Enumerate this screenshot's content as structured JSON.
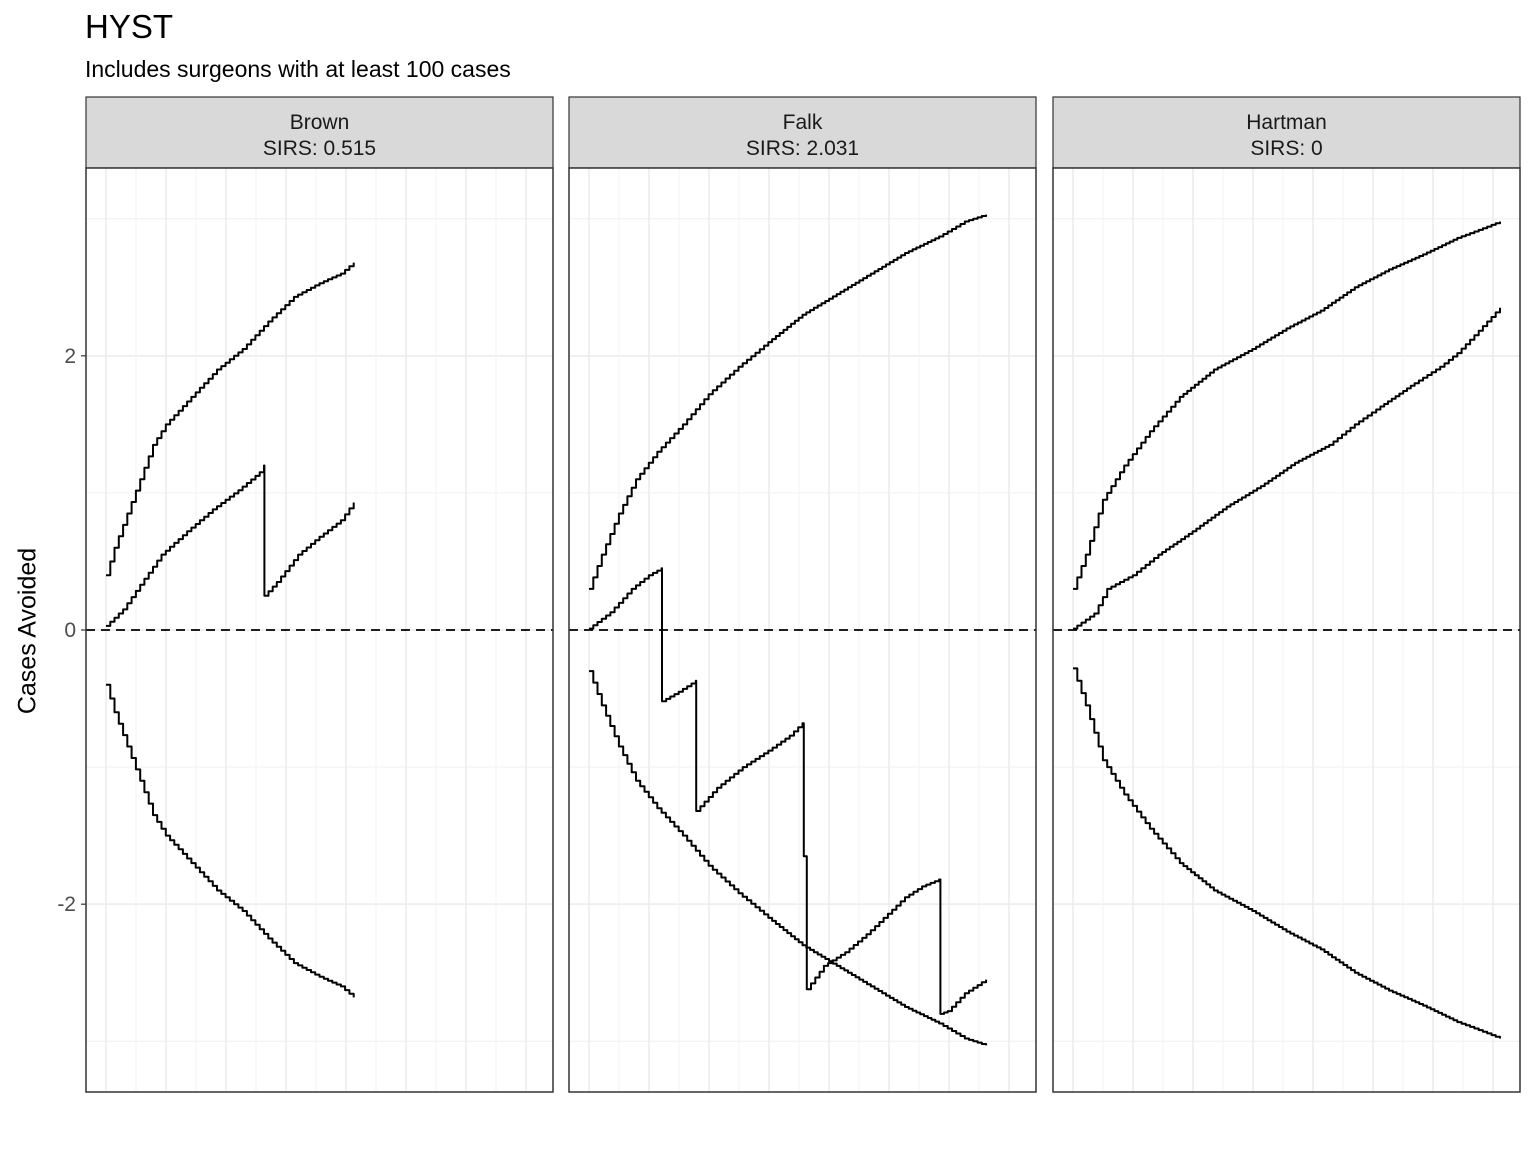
{
  "chart_data": {
    "type": "line",
    "title": "HYST",
    "subtitle": "Includes surgeons with at least 100 cases",
    "ylabel": "Cases Avoided",
    "xlabel": "",
    "ylim": [
      -3.37,
      3.37
    ],
    "y_ticks": [
      -2,
      0,
      2
    ],
    "y_tick_labels": [
      "-2",
      "0",
      "2"
    ],
    "x_range": [
      0,
      100
    ],
    "x_ticks_visible": false,
    "grid": true,
    "reference_line": {
      "y": 0,
      "style": "dashed"
    },
    "panels": [
      {
        "name": "Brown",
        "stat_label": "SIRS:  0.515",
        "upper": [
          [
            0,
            0.4
          ],
          [
            2,
            0.6
          ],
          [
            5,
            0.85
          ],
          [
            8,
            1.1
          ],
          [
            11,
            1.35
          ],
          [
            14,
            1.5
          ],
          [
            20,
            1.7
          ],
          [
            26,
            1.9
          ],
          [
            32,
            2.05
          ],
          [
            38,
            2.25
          ],
          [
            44,
            2.43
          ],
          [
            50,
            2.53
          ],
          [
            55,
            2.6
          ],
          [
            58,
            2.68
          ]
        ],
        "lower": [
          [
            0,
            -0.4
          ],
          [
            2,
            -0.6
          ],
          [
            5,
            -0.85
          ],
          [
            8,
            -1.1
          ],
          [
            11,
            -1.35
          ],
          [
            14,
            -1.5
          ],
          [
            20,
            -1.7
          ],
          [
            26,
            -1.9
          ],
          [
            32,
            -2.05
          ],
          [
            38,
            -2.25
          ],
          [
            44,
            -2.43
          ],
          [
            50,
            -2.53
          ],
          [
            55,
            -2.6
          ],
          [
            58,
            -2.68
          ]
        ],
        "cusum": [
          [
            0,
            0.03
          ],
          [
            4,
            0.15
          ],
          [
            8,
            0.33
          ],
          [
            13,
            0.55
          ],
          [
            19,
            0.72
          ],
          [
            25,
            0.88
          ],
          [
            31,
            1.02
          ],
          [
            36,
            1.15
          ],
          [
            37,
            1.2
          ],
          [
            37.1,
            0.25
          ],
          [
            40,
            0.35
          ],
          [
            45,
            0.55
          ],
          [
            50,
            0.68
          ],
          [
            55,
            0.8
          ],
          [
            58,
            0.93
          ]
        ]
      },
      {
        "name": "Falk",
        "stat_label": "SIRS:  2.031",
        "upper": [
          [
            0,
            0.3
          ],
          [
            3,
            0.55
          ],
          [
            7,
            0.85
          ],
          [
            11,
            1.1
          ],
          [
            16,
            1.3
          ],
          [
            22,
            1.5
          ],
          [
            28,
            1.72
          ],
          [
            35,
            1.92
          ],
          [
            42,
            2.1
          ],
          [
            50,
            2.3
          ],
          [
            58,
            2.45
          ],
          [
            66,
            2.6
          ],
          [
            74,
            2.75
          ],
          [
            82,
            2.87
          ],
          [
            88,
            2.98
          ],
          [
            93,
            3.03
          ]
        ],
        "lower": [
          [
            0,
            -0.3
          ],
          [
            3,
            -0.55
          ],
          [
            7,
            -0.85
          ],
          [
            11,
            -1.1
          ],
          [
            16,
            -1.3
          ],
          [
            22,
            -1.5
          ],
          [
            28,
            -1.72
          ],
          [
            35,
            -1.92
          ],
          [
            42,
            -2.1
          ],
          [
            50,
            -2.3
          ],
          [
            58,
            -2.45
          ],
          [
            66,
            -2.6
          ],
          [
            74,
            -2.75
          ],
          [
            82,
            -2.87
          ],
          [
            88,
            -2.98
          ],
          [
            93,
            -3.03
          ]
        ],
        "cusum": [
          [
            0,
            0.01
          ],
          [
            5,
            0.13
          ],
          [
            10,
            0.3
          ],
          [
            14,
            0.4
          ],
          [
            17,
            0.45
          ],
          [
            17.1,
            -0.52
          ],
          [
            21,
            -0.45
          ],
          [
            25,
            -0.37
          ],
          [
            25.1,
            -1.32
          ],
          [
            30,
            -1.15
          ],
          [
            36,
            -1.0
          ],
          [
            42,
            -0.88
          ],
          [
            47,
            -0.77
          ],
          [
            50,
            -0.68
          ],
          [
            50.3,
            -1.65
          ],
          [
            51,
            -2.62
          ],
          [
            55,
            -2.45
          ],
          [
            60,
            -2.35
          ],
          [
            65,
            -2.22
          ],
          [
            70,
            -2.07
          ],
          [
            74,
            -1.95
          ],
          [
            78,
            -1.87
          ],
          [
            82,
            -1.82
          ],
          [
            82.3,
            -2.8
          ],
          [
            84,
            -2.78
          ],
          [
            88,
            -2.65
          ],
          [
            93,
            -2.55
          ]
        ]
      },
      {
        "name": "Hartman",
        "stat_label": "SIRS:  0",
        "upper": [
          [
            0,
            0.3
          ],
          [
            3,
            0.55
          ],
          [
            7,
            0.95
          ],
          [
            12,
            1.2
          ],
          [
            18,
            1.45
          ],
          [
            25,
            1.7
          ],
          [
            33,
            1.9
          ],
          [
            42,
            2.05
          ],
          [
            50,
            2.2
          ],
          [
            58,
            2.33
          ],
          [
            66,
            2.5
          ],
          [
            74,
            2.63
          ],
          [
            82,
            2.74
          ],
          [
            90,
            2.86
          ],
          [
            96,
            2.93
          ],
          [
            100,
            2.98
          ]
        ],
        "lower": [
          [
            0,
            -0.28
          ],
          [
            3,
            -0.55
          ],
          [
            7,
            -0.95
          ],
          [
            12,
            -1.2
          ],
          [
            18,
            -1.45
          ],
          [
            25,
            -1.7
          ],
          [
            33,
            -1.9
          ],
          [
            42,
            -2.05
          ],
          [
            50,
            -2.2
          ],
          [
            58,
            -2.33
          ],
          [
            66,
            -2.5
          ],
          [
            74,
            -2.63
          ],
          [
            82,
            -2.74
          ],
          [
            90,
            -2.86
          ],
          [
            96,
            -2.93
          ],
          [
            100,
            -2.98
          ]
        ],
        "cusum": [
          [
            0,
            0.01
          ],
          [
            5,
            0.12
          ],
          [
            8,
            0.3
          ],
          [
            14,
            0.4
          ],
          [
            20,
            0.55
          ],
          [
            28,
            0.72
          ],
          [
            36,
            0.9
          ],
          [
            44,
            1.05
          ],
          [
            52,
            1.22
          ],
          [
            60,
            1.35
          ],
          [
            66,
            1.5
          ],
          [
            72,
            1.63
          ],
          [
            80,
            1.8
          ],
          [
            86,
            1.92
          ],
          [
            90,
            2.02
          ],
          [
            94,
            2.15
          ],
          [
            100,
            2.35
          ]
        ]
      }
    ]
  }
}
